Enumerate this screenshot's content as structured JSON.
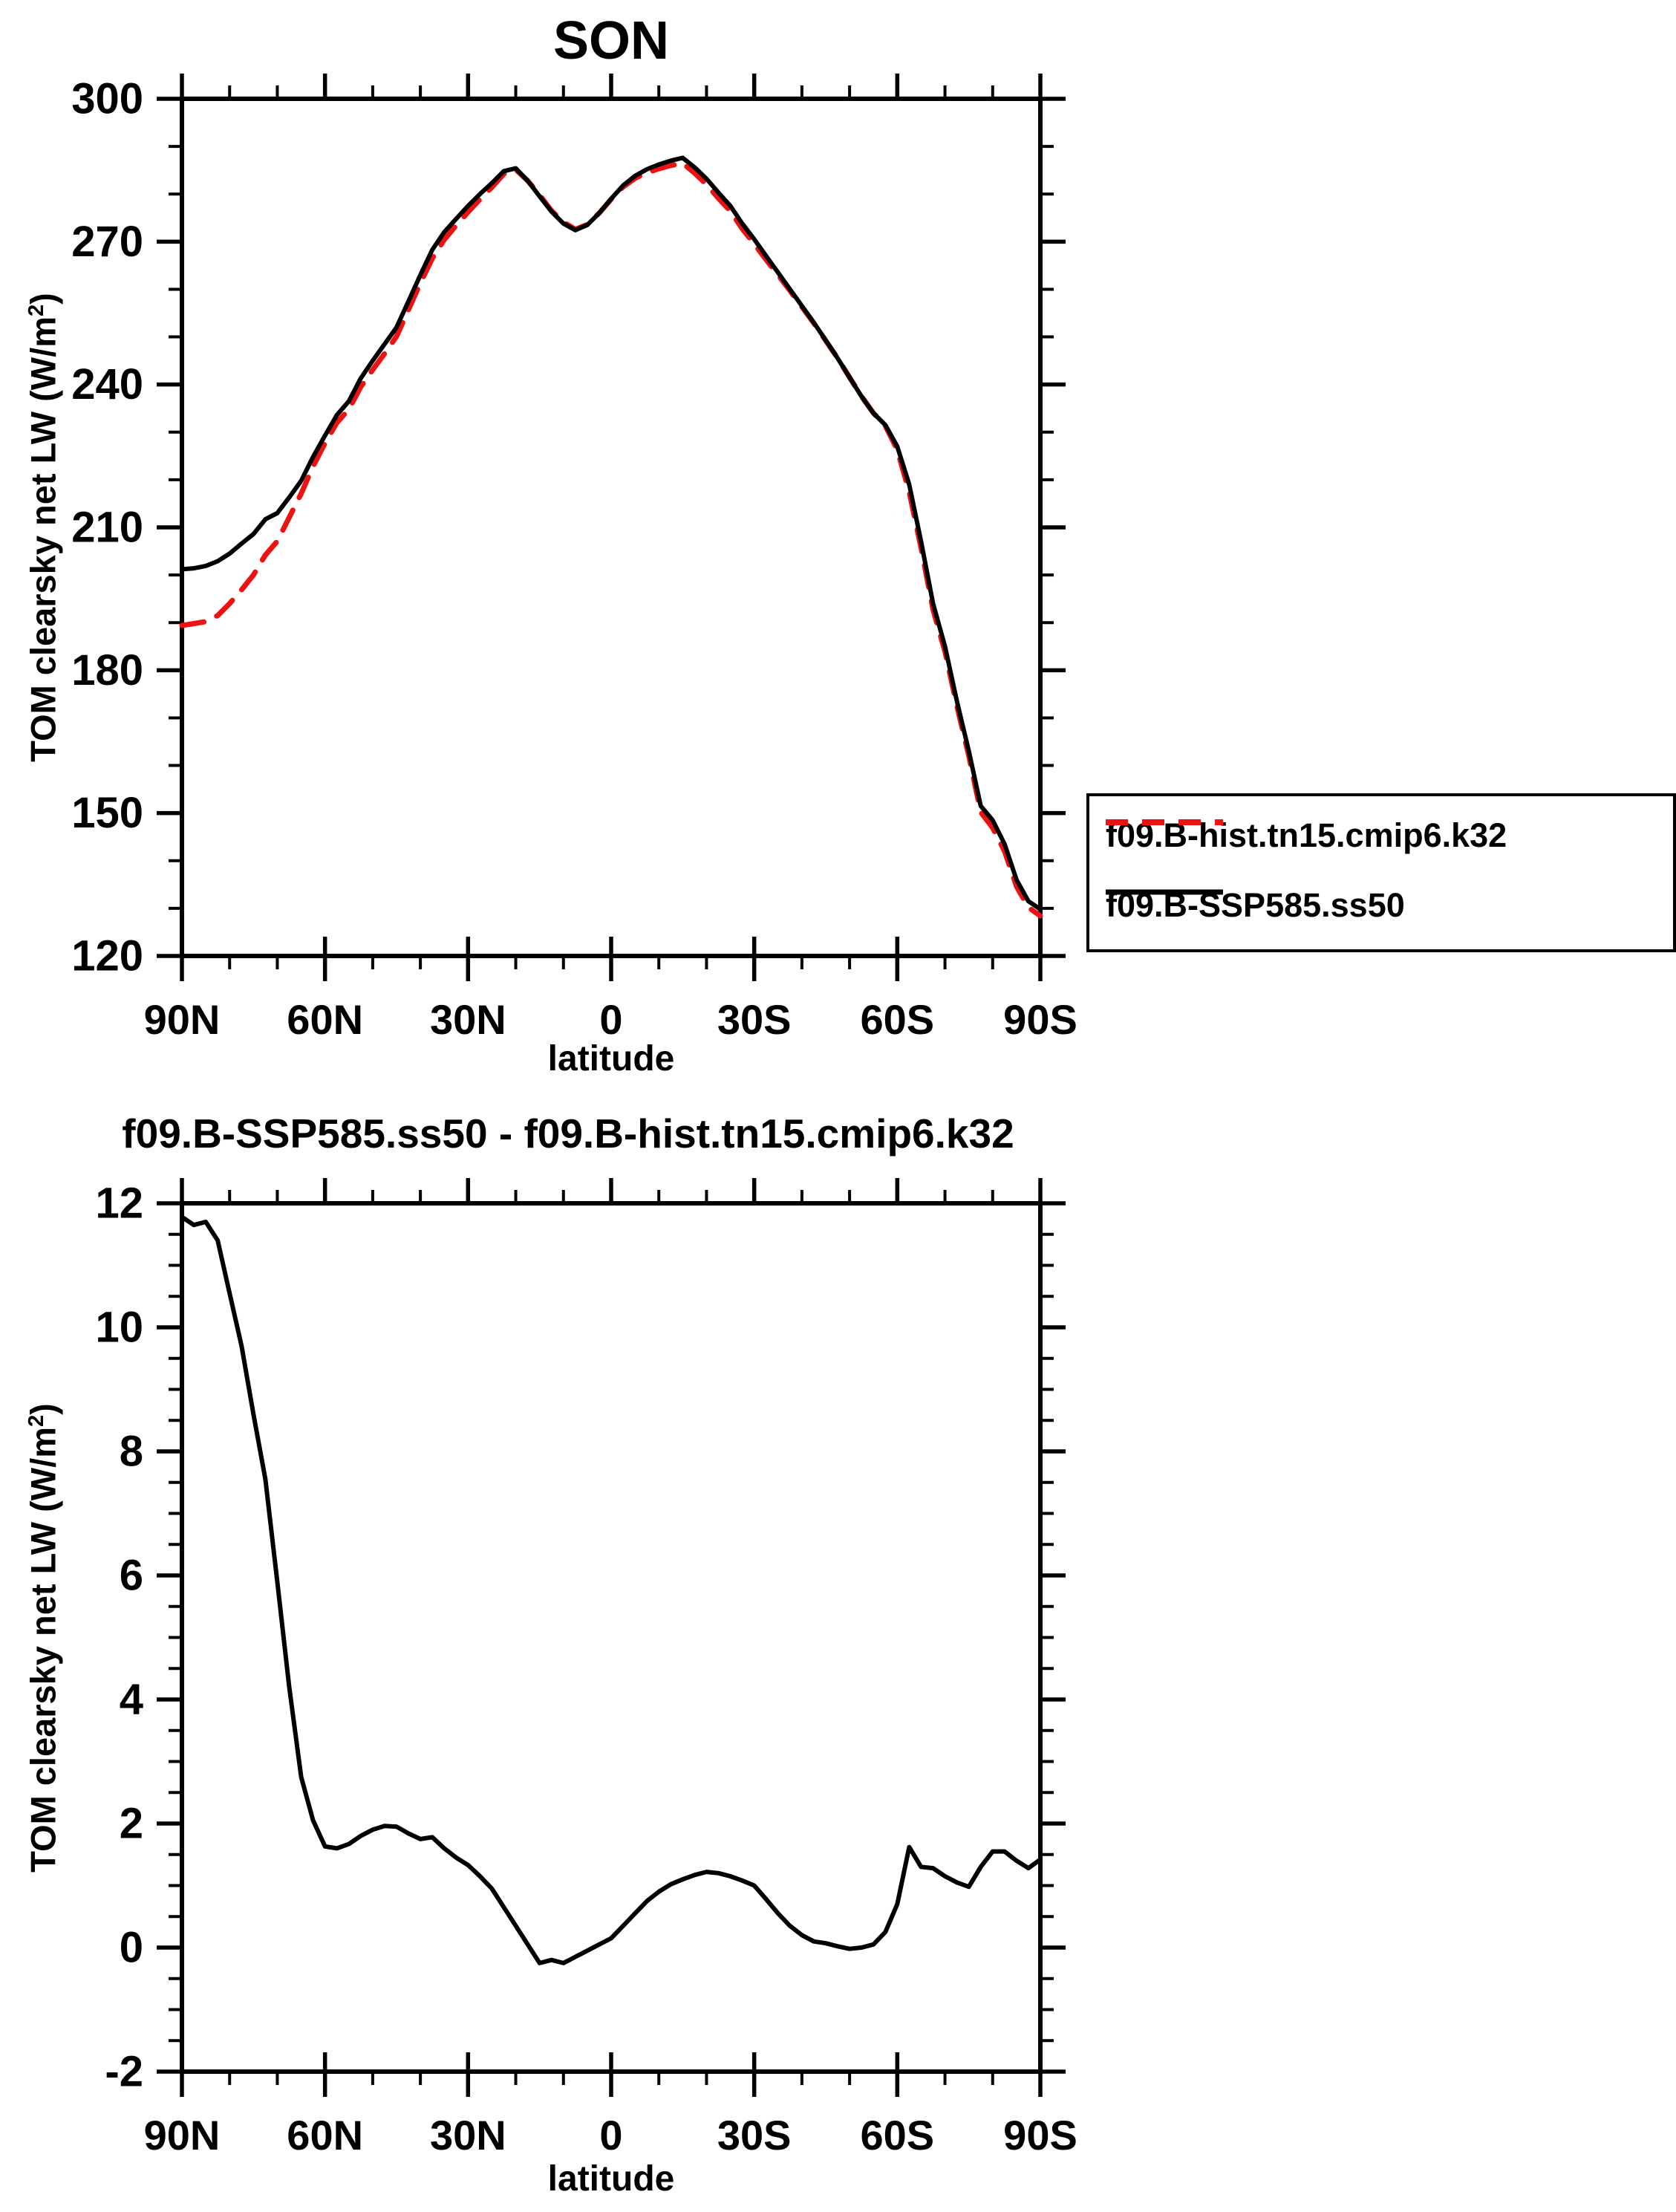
{
  "colors": {
    "hist_red": "#ee1111",
    "ssp_black": "#000000"
  },
  "labels": {
    "ylabel_parts": [
      "TOM clearsky net LW (W/m",
      "2",
      ")"
    ],
    "xlabel": "latitude"
  },
  "legend": {
    "position": "outside-right"
  },
  "chart_data": [
    {
      "type": "line",
      "title": "SON",
      "xlabel": "latitude",
      "ylabel": "TOM clearsky net LW (W/m2)",
      "ylim": [
        120,
        300
      ],
      "xlim": [
        90,
        -90
      ],
      "y_major_step": 30,
      "y_minor_step": 10,
      "x_major_step": 30,
      "x_minor_step": 10,
      "grid": false,
      "y_tick_values": [
        300,
        270,
        240,
        210,
        180,
        150,
        120
      ],
      "y_tick_labels": [
        "300",
        "270",
        "240",
        "210",
        "180",
        "150",
        "120"
      ],
      "x_tick_values": [
        90,
        60,
        30,
        0,
        -30,
        -60,
        -90
      ],
      "x_tick_labels": [
        "90N",
        "60N",
        "30N",
        "0",
        "30S",
        "60S",
        "90S"
      ],
      "x": [
        90,
        87.5,
        85,
        82.5,
        80,
        77.5,
        75,
        72.5,
        70,
        67.5,
        65,
        62.5,
        60,
        57.5,
        55,
        52.5,
        50,
        47.5,
        45,
        42.5,
        40,
        37.5,
        35,
        32.5,
        30,
        27.5,
        25,
        22.5,
        20,
        17.5,
        15,
        12.5,
        10,
        7.5,
        5,
        2.5,
        0,
        -2.5,
        -5,
        -7.5,
        -10,
        -12.5,
        -15,
        -17.5,
        -20,
        -22.5,
        -25,
        -27.5,
        -30,
        -32.5,
        -35,
        -37.5,
        -40,
        -42.5,
        -45,
        -47.5,
        -50,
        -52.5,
        -55,
        -57.5,
        -60,
        -62.5,
        -65,
        -67.5,
        -70,
        -72.5,
        -75,
        -77.5,
        -80,
        -82.5,
        -85,
        -87.5,
        -90
      ],
      "series": [
        {
          "name": "f09.B-hist.tn15.cmip6.k32",
          "color": "#ee1111",
          "dash": true,
          "width": 7,
          "values": [
            189.4,
            189.8,
            190.2,
            191.5,
            194.0,
            196.9,
            200.0,
            204.2,
            207.1,
            212.1,
            217.1,
            222.8,
            227.7,
            232.0,
            234.8,
            239.5,
            243.1,
            246.5,
            250.1,
            255.7,
            261.3,
            266.5,
            270.4,
            273.4,
            276.2,
            278.9,
            281.4,
            284.2,
            285.1,
            282.8,
            279.8,
            276.5,
            274.1,
            272.6,
            273.6,
            276.0,
            278.9,
            281.5,
            283.3,
            284.5,
            285.3,
            286.0,
            286.5,
            284.4,
            282.0,
            279.1,
            276.4,
            272.7,
            269.5,
            266.2,
            263.0,
            259.7,
            256.3,
            252.9,
            249.2,
            245.5,
            241.5,
            237.5,
            234.0,
            231.3,
            226.3,
            217.4,
            205.7,
            192.7,
            183.9,
            172.5,
            162.0,
            150.2,
            146.9,
            142.0,
            134.6,
            130.2,
            128.4
          ]
        },
        {
          "name": "f09.B-SSP585.ss50",
          "color": "#000000",
          "dash": false,
          "width": 6,
          "values": [
            201.2,
            201.4,
            201.9,
            202.9,
            204.5,
            206.6,
            208.6,
            211.7,
            213.0,
            216.3,
            219.8,
            224.8,
            229.3,
            233.6,
            236.5,
            241.3,
            245.0,
            248.5,
            252.0,
            257.5,
            263.0,
            268.3,
            272.0,
            274.8,
            277.5,
            280.0,
            282.3,
            284.8,
            285.4,
            282.8,
            279.5,
            276.3,
            273.8,
            272.4,
            273.5,
            276.0,
            279.0,
            281.8,
            283.8,
            285.2,
            286.2,
            287.0,
            287.6,
            285.6,
            283.2,
            280.3,
            277.5,
            273.8,
            270.5,
            267.0,
            263.5,
            260.0,
            256.5,
            253.0,
            249.3,
            245.5,
            241.5,
            237.5,
            234.0,
            231.5,
            227.0,
            219.0,
            207.0,
            194.0,
            185.0,
            173.5,
            163.0,
            151.5,
            148.5,
            143.5,
            136.0,
            131.5,
            129.8
          ]
        }
      ]
    },
    {
      "type": "line",
      "title": "f09.B-SSP585.ss50 - f09.B-hist.tn15.cmip6.k32",
      "xlabel": "latitude",
      "ylabel": "TOM clearsky net LW (W/m2)",
      "ylim": [
        -2,
        12
      ],
      "xlim": [
        90,
        -90
      ],
      "y_major_step": 2,
      "y_minor_step": 0.5,
      "x_major_step": 30,
      "x_minor_step": 10,
      "grid": false,
      "y_tick_values": [
        12,
        10,
        8,
        6,
        4,
        2,
        0,
        -2
      ],
      "y_tick_labels": [
        "12",
        "10",
        "8",
        "6",
        "4",
        "2",
        "0",
        "-2"
      ],
      "x_tick_values": [
        90,
        60,
        30,
        0,
        -30,
        -60,
        -90
      ],
      "x_tick_labels": [
        "90N",
        "60N",
        "30N",
        "0",
        "30S",
        "60S",
        "90S"
      ],
      "x": [
        90,
        87.5,
        85,
        82.5,
        80,
        77.5,
        75,
        72.5,
        70,
        67.5,
        65,
        62.5,
        60,
        57.5,
        55,
        52.5,
        50,
        47.5,
        45,
        42.5,
        40,
        37.5,
        35,
        32.5,
        30,
        27.5,
        25,
        22.5,
        20,
        17.5,
        15,
        12.5,
        10,
        7.5,
        5,
        2.5,
        0,
        -2.5,
        -5,
        -7.5,
        -10,
        -12.5,
        -15,
        -17.5,
        -20,
        -22.5,
        -25,
        -27.5,
        -30,
        -32.5,
        -35,
        -37.5,
        -40,
        -42.5,
        -45,
        -47.5,
        -50,
        -52.5,
        -55,
        -57.5,
        -60,
        -62.5,
        -65,
        -67.5,
        -70,
        -72.5,
        -75,
        -77.5,
        -80,
        -82.5,
        -85,
        -87.5,
        -90
      ],
      "series": [
        {
          "name": "f09.B-SSP585.ss50 - f09.B-hist.tn15.cmip6.k32",
          "color": "#000000",
          "dash": false,
          "width": 6,
          "values": [
            11.78,
            11.65,
            11.7,
            11.4,
            10.55,
            9.7,
            8.6,
            7.55,
            5.9,
            4.2,
            2.75,
            2.05,
            1.63,
            1.6,
            1.67,
            1.8,
            1.9,
            1.96,
            1.95,
            1.84,
            1.75,
            1.78,
            1.6,
            1.45,
            1.33,
            1.15,
            0.95,
            0.65,
            0.35,
            0.05,
            -0.25,
            -0.2,
            -0.25,
            -0.15,
            -0.05,
            0.05,
            0.15,
            0.35,
            0.55,
            0.75,
            0.9,
            1.02,
            1.1,
            1.17,
            1.22,
            1.2,
            1.15,
            1.08,
            1.0,
            0.78,
            0.55,
            0.35,
            0.2,
            0.1,
            0.07,
            0.02,
            -0.02,
            0.0,
            0.05,
            0.25,
            0.7,
            1.62,
            1.3,
            1.28,
            1.15,
            1.05,
            0.98,
            1.3,
            1.55,
            1.55,
            1.4,
            1.28,
            1.42
          ]
        }
      ]
    }
  ]
}
